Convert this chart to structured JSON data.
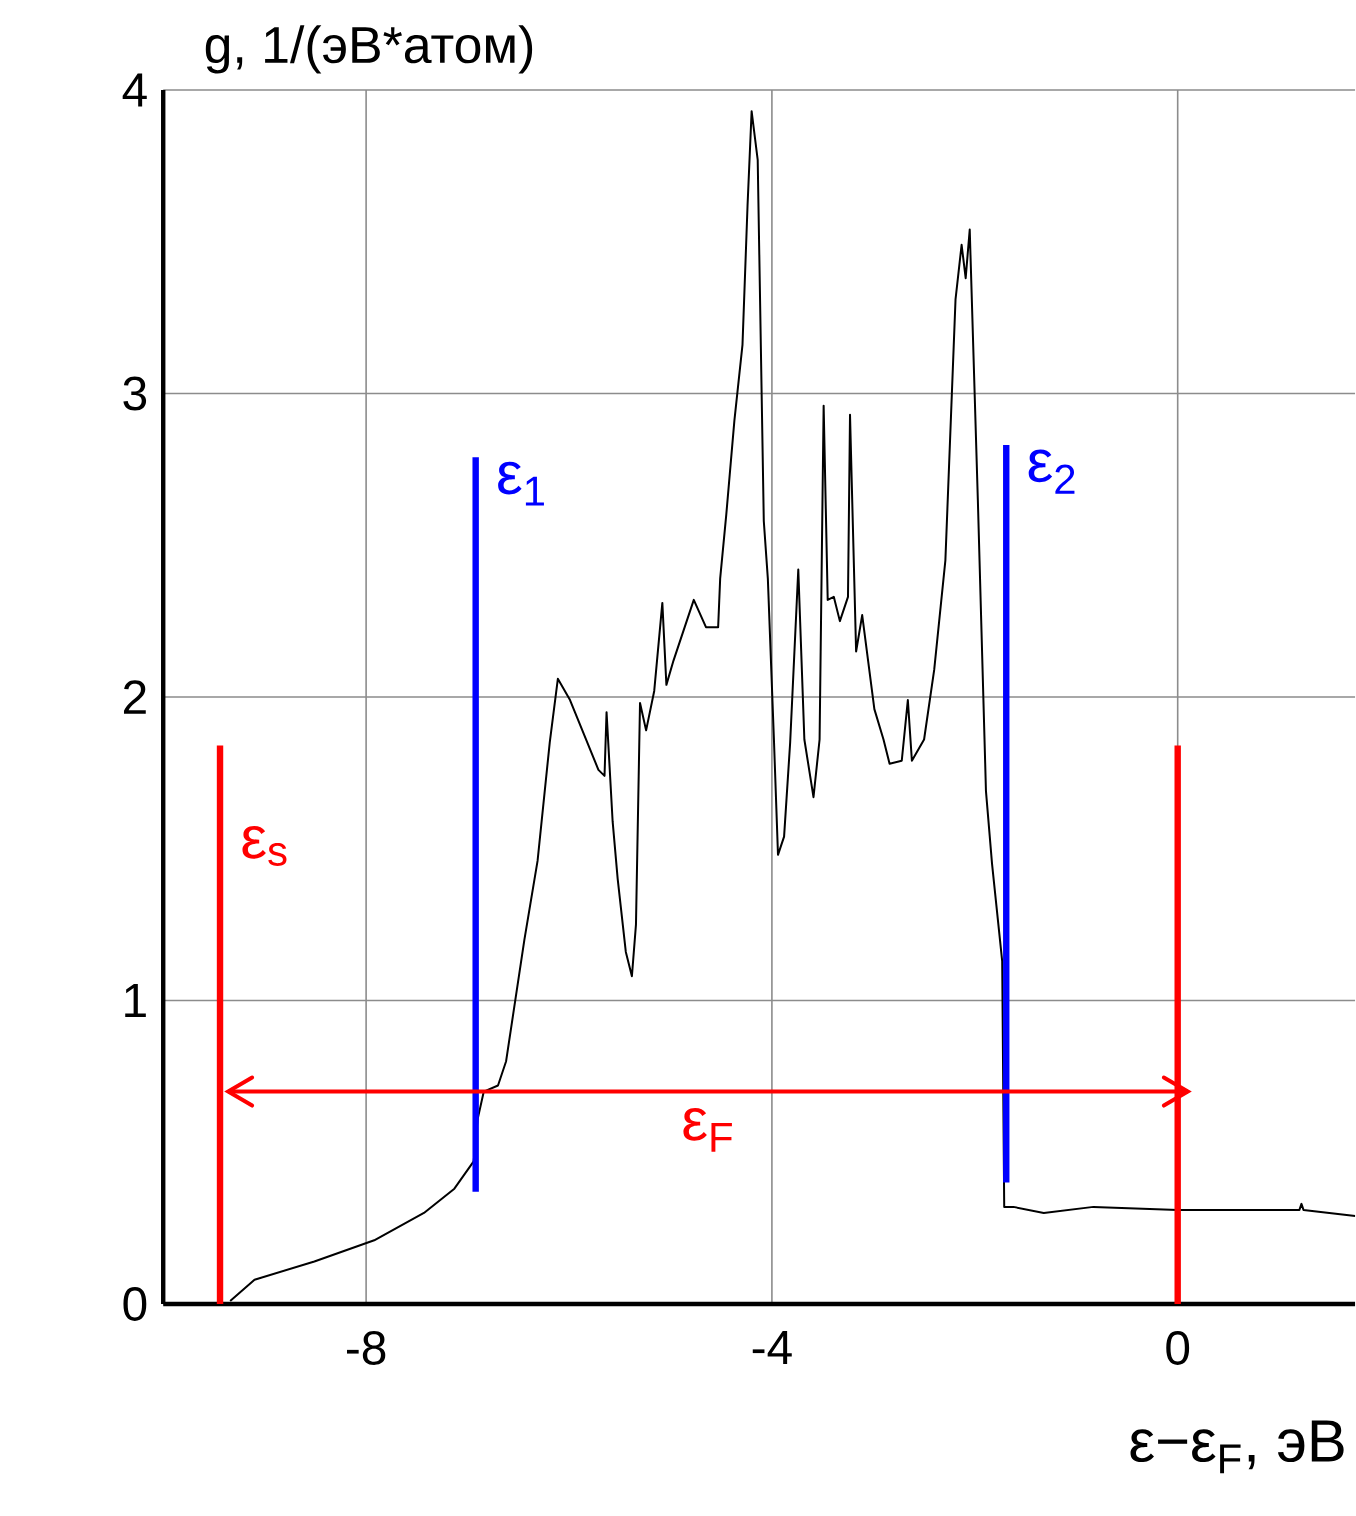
{
  "chart_data": {
    "type": "line",
    "xlabel": "ε−ε$_{F}$, эВ",
    "ylabel": "g, 1/(эВ*атом)",
    "xlim": [
      -10,
      1.75
    ],
    "ylim": [
      0,
      4
    ],
    "xticks": [
      -8,
      -4,
      0
    ],
    "yticks": [
      0,
      1,
      2,
      3,
      4
    ],
    "grid": true,
    "annotations": [
      "ε$_{F}$"
    ],
    "series": [
      {
        "color": "#000000",
        "x": [
          -9.34,
          -9.1,
          -8.51,
          -7.92,
          -7.43,
          -7.13,
          -6.94,
          -6.9,
          -6.84,
          -6.7,
          -6.62,
          -6.44,
          -6.31,
          -6.19,
          -6.11,
          -5.99,
          -5.71,
          -5.65,
          -5.63,
          -5.57,
          -5.52,
          -5.44,
          -5.38,
          -5.34,
          -5.3,
          -5.24,
          -5.16,
          -5.08,
          -5.04,
          -4.97,
          -4.77,
          -4.65,
          -4.53,
          -4.51,
          -4.45,
          -4.37,
          -4.29,
          -4.24,
          -4.2,
          -4.14,
          -4.08,
          -4.04,
          -3.98,
          -3.94,
          -3.88,
          -3.82,
          -3.74,
          -3.68,
          -3.59,
          -3.53,
          -3.49,
          -3.45,
          -3.39,
          -3.33,
          -3.25,
          -3.23,
          -3.17,
          -3.11,
          -2.99,
          -2.9,
          -2.84,
          -2.72,
          -2.66,
          -2.62,
          -2.5,
          -2.4,
          -2.29,
          -2.19,
          -2.13,
          -2.09,
          -2.05,
          -1.97,
          -1.89,
          -1.83,
          -1.73,
          -1.71,
          -1.62,
          -1.32,
          -0.83,
          0,
          1.2,
          1.22,
          1.24,
          1.75
        ],
        "values": [
          0.01,
          0.08,
          0.14,
          0.21,
          0.3,
          0.38,
          0.47,
          0.61,
          0.7,
          0.72,
          0.8,
          1.2,
          1.46,
          1.85,
          2.06,
          1.99,
          1.76,
          1.74,
          1.95,
          1.59,
          1.4,
          1.16,
          1.08,
          1.25,
          1.98,
          1.89,
          2.02,
          2.31,
          2.04,
          2.12,
          2.32,
          2.23,
          2.23,
          2.39,
          2.6,
          2.91,
          3.16,
          3.62,
          3.93,
          3.77,
          2.58,
          2.39,
          1.86,
          1.48,
          1.54,
          1.85,
          2.42,
          1.86,
          1.67,
          1.86,
          2.96,
          2.32,
          2.33,
          2.25,
          2.33,
          2.93,
          2.15,
          2.27,
          1.96,
          1.86,
          1.78,
          1.79,
          1.99,
          1.79,
          1.86,
          2.09,
          2.45,
          3.31,
          3.49,
          3.38,
          3.54,
          2.65,
          1.69,
          1.45,
          1.13,
          0.32,
          0.32,
          0.3,
          0.32,
          0.31,
          0.31,
          0.33,
          0.31,
          0.29
        ]
      },
      {
        "name": "ε$_{s}$",
        "color": "#ff0000",
        "x": [
          -9.44,
          -9.44
        ],
        "values": [
          0,
          1.84
        ]
      },
      {
        "name": "ε$_{1}$",
        "color": "#0000ff",
        "x": [
          -6.92,
          -6.92
        ],
        "values": [
          0.37,
          2.79
        ]
      },
      {
        "name": "ε$_{2}$",
        "color": "#0000ff",
        "x": [
          -1.69,
          -1.69
        ],
        "values": [
          0.4,
          2.83
        ]
      },
      {
        "color": "#ff0000",
        "x": [
          0,
          0
        ],
        "values": [
          0,
          1.84
        ]
      },
      {
        "color": "#ff0000",
        "x": [
          -9.36,
          0.1
        ],
        "values": [
          0.7,
          0.7
        ]
      }
    ]
  }
}
